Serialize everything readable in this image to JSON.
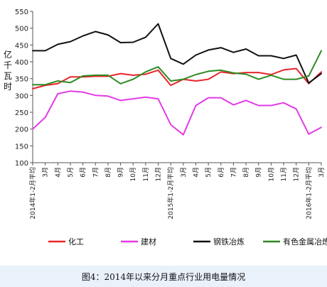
{
  "caption": "图4：2014年以来分月重点行业用电量情况",
  "chart_data": {
    "type": "line",
    "title": "",
    "ylabel": [
      "亿",
      "千",
      "瓦",
      "时"
    ],
    "xlabel": "",
    "ylim": [
      100,
      550
    ],
    "yticks": [
      100,
      150,
      200,
      250,
      300,
      350,
      400,
      450,
      500,
      550
    ],
    "grid": false,
    "legend_position": "bottom",
    "categories": [
      "2014年1-2月平均",
      "3月",
      "4月",
      "5月",
      "6月",
      "7月",
      "8月",
      "9月",
      "10月",
      "11月",
      "12月",
      "2015年1-2月平均",
      "3月",
      "4月",
      "5月",
      "6月",
      "7月",
      "8月",
      "9月",
      "10月",
      "11月",
      "12月",
      "2016年1-2月平均",
      "3月"
    ],
    "series": [
      {
        "name": "化工",
        "color": "#e8262c",
        "values": [
          320,
          330,
          335,
          355,
          355,
          357,
          357,
          365,
          360,
          363,
          375,
          330,
          348,
          343,
          348,
          370,
          365,
          368,
          368,
          362,
          376,
          380,
          335,
          370
        ]
      },
      {
        "name": "建材",
        "color": "#e33be6",
        "values": [
          200,
          235,
          305,
          313,
          310,
          300,
          298,
          285,
          290,
          295,
          290,
          213,
          183,
          270,
          293,
          293,
          272,
          285,
          270,
          270,
          278,
          260,
          185,
          205
        ]
      },
      {
        "name": "钢铁冶炼",
        "color": "#111111",
        "values": [
          433,
          433,
          452,
          460,
          477,
          490,
          480,
          457,
          458,
          473,
          513,
          410,
          393,
          420,
          435,
          442,
          428,
          438,
          418,
          418,
          410,
          420,
          337,
          365
        ]
      },
      {
        "name": "有色金属冶炼",
        "color": "#2e8b22",
        "values": [
          332,
          332,
          343,
          338,
          358,
          360,
          360,
          335,
          348,
          370,
          385,
          343,
          348,
          362,
          372,
          375,
          367,
          363,
          348,
          360,
          348,
          348,
          358,
          433
        ]
      }
    ]
  }
}
